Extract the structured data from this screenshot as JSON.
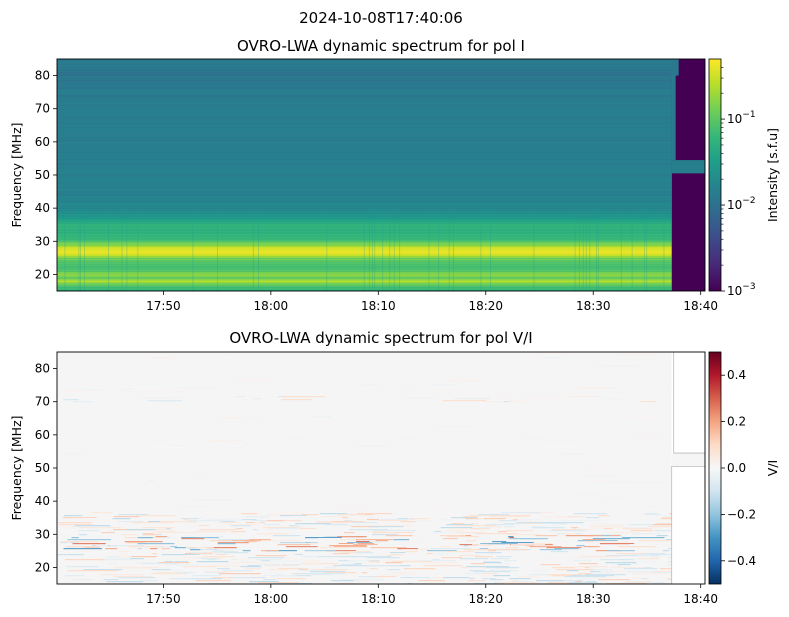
{
  "figure": {
    "suptitle": "2024-10-08T17:40:06"
  },
  "colors": {
    "viridis": [
      "#440154",
      "#482878",
      "#3e4a89",
      "#31688e",
      "#26828e",
      "#1f9e89",
      "#35b779",
      "#6ece58",
      "#b5de2b",
      "#fde725"
    ],
    "rdbu_r": [
      "#053061",
      "#2166ac",
      "#4393c3",
      "#92c5de",
      "#d1e5f0",
      "#f7f7f7",
      "#fddbc7",
      "#f4a582",
      "#d6604d",
      "#b2182b",
      "#67001f"
    ]
  },
  "chart_data": [
    {
      "type": "heatmap",
      "title": "OVRO-LWA dynamic spectrum for pol I",
      "xlabel": "",
      "ylabel": "Frequency [MHz]",
      "x_ticks": [
        "17:50",
        "18:00",
        "18:10",
        "18:20",
        "18:30",
        "18:40"
      ],
      "x_tick_values_min": [
        1070,
        1080,
        1090,
        1100,
        1110,
        1120
      ],
      "xlim_min": [
        1060.1,
        1120.4
      ],
      "y_ticks": [
        20,
        30,
        40,
        50,
        60,
        70,
        80
      ],
      "ylim": [
        15,
        85
      ],
      "data_end_min": 1117.3,
      "gap_band_mhz": [
        50.5,
        54.5
      ],
      "colorbar": {
        "label": "Intensity [s.f.u]",
        "scale": "log",
        "range": [
          0.001,
          0.5
        ],
        "ticks": [
          0.001,
          0.01,
          0.1
        ],
        "tick_labels": [
          "10",
          "10",
          "10"
        ],
        "tick_exponents": [
          "−3",
          "−2",
          "−1"
        ],
        "colormap": "viridis"
      },
      "spectrum_profile": [
        {
          "mhz": 15,
          "log_intensity": -1.3
        },
        {
          "mhz": 17,
          "log_intensity": -1.0
        },
        {
          "mhz": 18,
          "log_intensity": -0.6
        },
        {
          "mhz": 19,
          "log_intensity": -1.0
        },
        {
          "mhz": 20,
          "log_intensity": -0.7
        },
        {
          "mhz": 21,
          "log_intensity": -1.0
        },
        {
          "mhz": 23,
          "log_intensity": -1.1
        },
        {
          "mhz": 25,
          "log_intensity": -0.9
        },
        {
          "mhz": 26,
          "log_intensity": -0.5
        },
        {
          "mhz": 27,
          "log_intensity": -0.35
        },
        {
          "mhz": 28,
          "log_intensity": -0.45
        },
        {
          "mhz": 29,
          "log_intensity": -0.8
        },
        {
          "mhz": 31,
          "log_intensity": -1.2
        },
        {
          "mhz": 33,
          "log_intensity": -1.3
        },
        {
          "mhz": 35,
          "log_intensity": -1.25
        },
        {
          "mhz": 37,
          "log_intensity": -1.55
        },
        {
          "mhz": 40,
          "log_intensity": -1.75
        },
        {
          "mhz": 45,
          "log_intensity": -1.82
        },
        {
          "mhz": 60,
          "log_intensity": -1.85
        },
        {
          "mhz": 70,
          "log_intensity": -1.85
        },
        {
          "mhz": 77,
          "log_intensity": -1.9
        },
        {
          "mhz": 80,
          "log_intensity": -1.95
        },
        {
          "mhz": 85,
          "log_intensity": -1.9
        }
      ]
    },
    {
      "type": "heatmap",
      "title": "OVRO-LWA dynamic spectrum for pol V/I",
      "xlabel": "",
      "ylabel": "Frequency [MHz]",
      "x_ticks": [
        "17:50",
        "18:00",
        "18:10",
        "18:20",
        "18:30",
        "18:40"
      ],
      "x_tick_values_min": [
        1070,
        1080,
        1090,
        1100,
        1110,
        1120
      ],
      "xlim_min": [
        1060.1,
        1120.4
      ],
      "y_ticks": [
        20,
        30,
        40,
        50,
        60,
        70,
        80
      ],
      "ylim": [
        15,
        85
      ],
      "data_end_min": 1117.3,
      "gap_band_mhz": [
        50.5,
        54.5
      ],
      "colorbar": {
        "label": "V/I",
        "scale": "linear",
        "range": [
          -0.5,
          0.5
        ],
        "ticks": [
          -0.4,
          -0.2,
          0.0,
          0.2,
          0.4
        ],
        "tick_labels": [
          "−0.4",
          "−0.2",
          "0.0",
          "0.2",
          "0.4"
        ],
        "colormap": "RdBu_r"
      }
    }
  ]
}
